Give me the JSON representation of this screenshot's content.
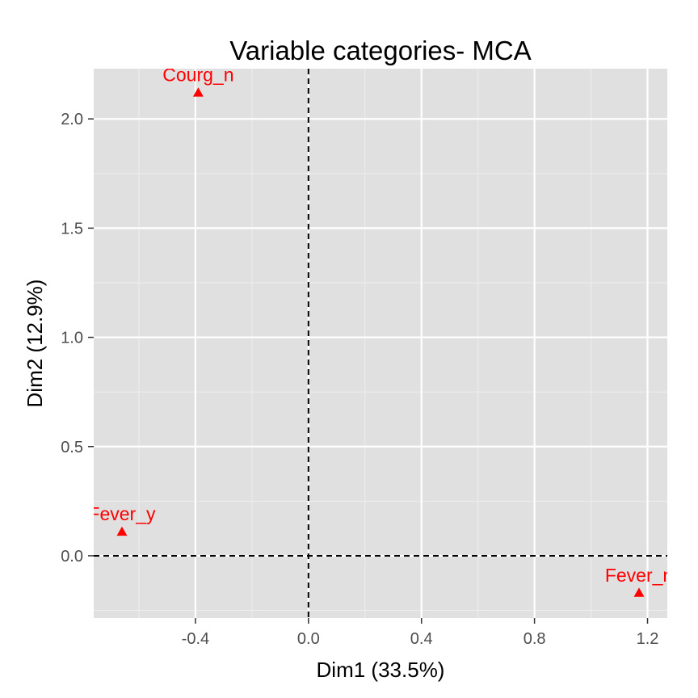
{
  "chart_data": {
    "type": "scatter",
    "title": "Variable categories- MCA",
    "xlabel": "Dim1 (33.5%)",
    "ylabel": "Dim2 (12.9%)",
    "xlim": [
      -0.76,
      1.27
    ],
    "ylim": [
      -0.285,
      2.23
    ],
    "x_ticks": [
      -0.4,
      0.0,
      0.4,
      0.8,
      1.2
    ],
    "x_tick_labels": [
      "-0.4",
      "0.0",
      "0.4",
      "0.8",
      "1.2"
    ],
    "y_ticks": [
      0.0,
      0.5,
      1.0,
      1.5,
      2.0
    ],
    "y_tick_labels": [
      "0.0",
      "0.5",
      "1.0",
      "1.5",
      "2.0"
    ],
    "grid": true,
    "reference_lines": {
      "x": 0,
      "y": 0,
      "style": "dashed"
    },
    "series": [
      {
        "name": "Variable categories",
        "marker": "triangle",
        "color": "#ff0000",
        "points": [
          {
            "label": "Courg_n",
            "x": -0.39,
            "y": 2.12
          },
          {
            "label": "Fever_y",
            "x": -0.66,
            "y": 0.11
          },
          {
            "label": "Fever_n",
            "x": 1.17,
            "y": -0.17
          }
        ]
      }
    ]
  },
  "colors": {
    "panel": "#e0e0e0",
    "grid_major": "#ffffff",
    "grid_minor": "#eeeeee",
    "points": "#ff0000",
    "reference_line": "#000000",
    "tick": "#333333"
  }
}
